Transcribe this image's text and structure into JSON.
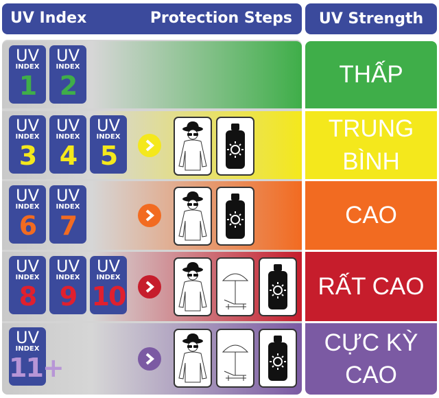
{
  "header": {
    "uv_index": "UV Index",
    "protection_steps": "Protection Steps",
    "uv_strength": "UV Strength"
  },
  "badge_label": {
    "top": "UV",
    "sub": "INDEX"
  },
  "rows": [
    {
      "numbers": [
        "1",
        "2"
      ],
      "number_color": "#3fae49",
      "color": "#3fae49",
      "strength": "THẤP"
    },
    {
      "numbers": [
        "3",
        "4",
        "5"
      ],
      "number_color": "#f4e81c",
      "color": "#f4e81c",
      "strength": "TRUNG BÌNH"
    },
    {
      "numbers": [
        "6",
        "7"
      ],
      "number_color": "#f26b21",
      "color": "#f26b21",
      "strength": "CAO"
    },
    {
      "numbers": [
        "8",
        "9",
        "10"
      ],
      "number_color": "#e0202e",
      "color": "#c61d2c",
      "strength": "RẤT CAO"
    },
    {
      "numbers": [
        "11+"
      ],
      "number_color": "#b795d6",
      "color": "#7b5aa3",
      "strength": "CỰC KỲ CAO"
    }
  ]
}
